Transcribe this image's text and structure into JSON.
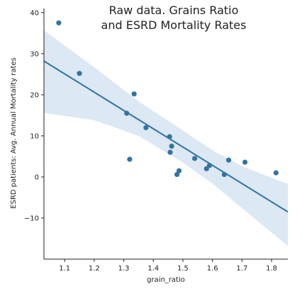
{
  "chart_data": {
    "type": "scatter",
    "title_lines": [
      "Raw data. Grains Ratio",
      "and ESRD Mortality Rates"
    ],
    "xlabel": "grain_ratio",
    "ylabel": "ESRD patients: Avg. Annual Mortality rates",
    "xlim": [
      1.03,
      1.855
    ],
    "ylim": [
      -20,
      41
    ],
    "xticks": [
      1.1,
      1.2,
      1.3,
      1.4,
      1.5,
      1.6,
      1.7,
      1.8
    ],
    "xtick_labels": [
      "1.1",
      "1.2",
      "1.3",
      "1.4",
      "1.5",
      "1.6",
      "1.7",
      "1.8"
    ],
    "yticks": [
      -10,
      0,
      10,
      20,
      30,
      40
    ],
    "ytick_labels": [
      "−10",
      "0",
      "10",
      "20",
      "30",
      "40"
    ],
    "grid": false,
    "points": [
      {
        "x": 1.08,
        "y": 37.5
      },
      {
        "x": 1.15,
        "y": 25.2
      },
      {
        "x": 1.31,
        "y": 15.5
      },
      {
        "x": 1.32,
        "y": 4.3
      },
      {
        "x": 1.335,
        "y": 20.2
      },
      {
        "x": 1.375,
        "y": 12.0
      },
      {
        "x": 1.455,
        "y": 9.8
      },
      {
        "x": 1.457,
        "y": 6.0
      },
      {
        "x": 1.462,
        "y": 7.5
      },
      {
        "x": 1.48,
        "y": 0.6
      },
      {
        "x": 1.487,
        "y": 1.5
      },
      {
        "x": 1.54,
        "y": 4.5
      },
      {
        "x": 1.58,
        "y": 2.0
      },
      {
        "x": 1.59,
        "y": 2.8
      },
      {
        "x": 1.64,
        "y": 0.6
      },
      {
        "x": 1.655,
        "y": 4.1
      },
      {
        "x": 1.71,
        "y": 3.6
      },
      {
        "x": 1.815,
        "y": 1.0
      }
    ],
    "regression": {
      "x": [
        1.03,
        1.855
      ],
      "y": [
        28.2,
        -8.5
      ]
    },
    "confidence_band": {
      "x": [
        1.03,
        1.2,
        1.35,
        1.5,
        1.6,
        1.7,
        1.855
      ],
      "upper": [
        35.7,
        26.7,
        18.4,
        11.3,
        6.5,
        2.6,
        -1.7
      ],
      "lower": [
        15.6,
        13.8,
        10.0,
        3.5,
        -1.6,
        -7.6,
        -16.8
      ]
    },
    "colors": {
      "points": "#3274a1",
      "line": "#3274a1",
      "band": "#c5d8ed",
      "axis": "#222222"
    }
  }
}
